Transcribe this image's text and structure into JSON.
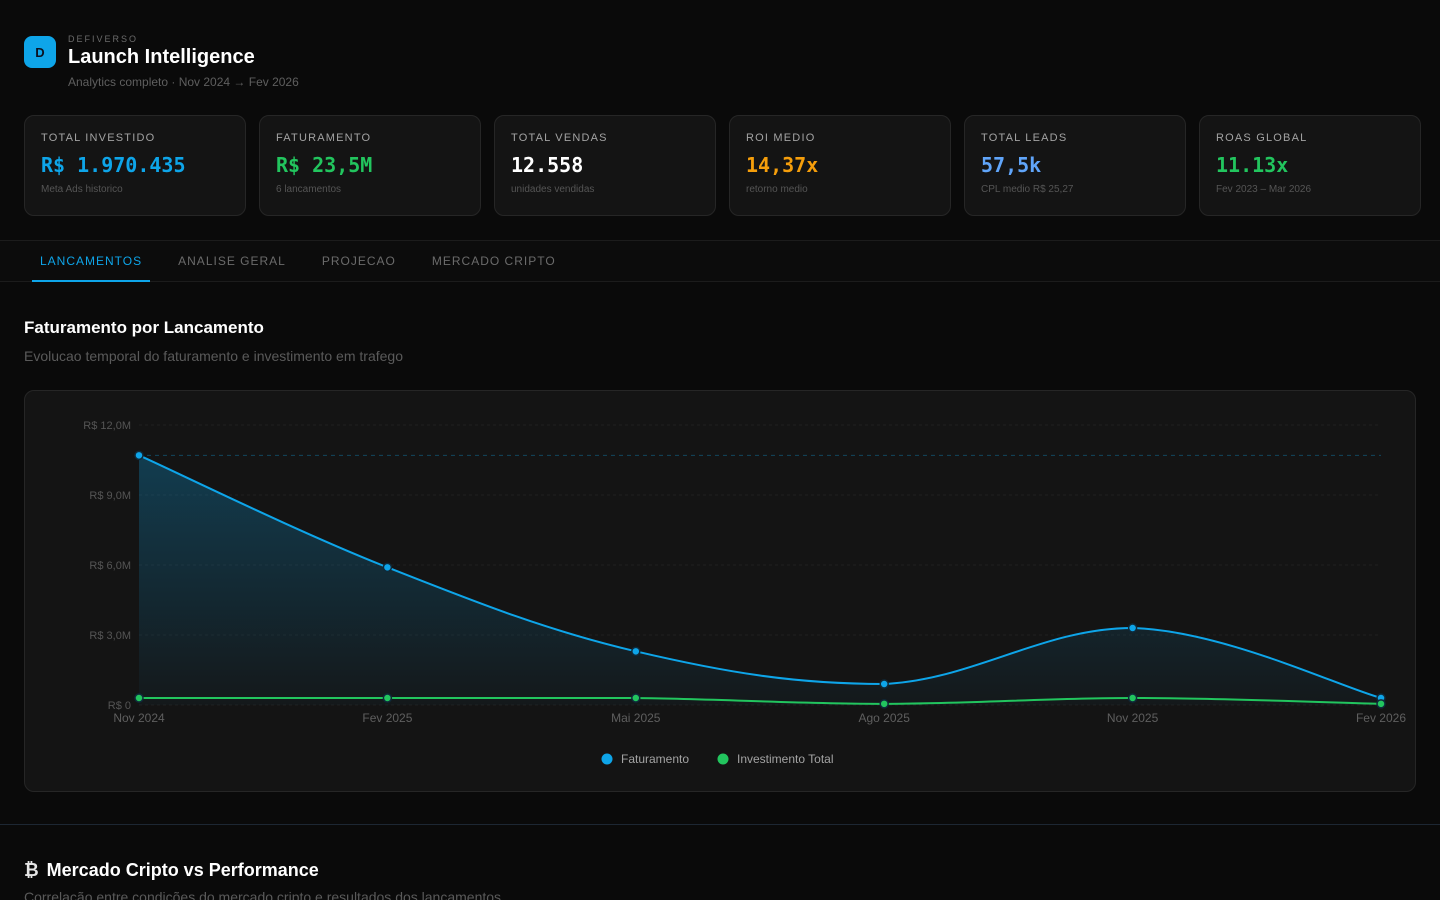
{
  "header": {
    "logo_letter": "D",
    "brand": "DEFIVERSO",
    "title": "Launch Intelligence",
    "subtitle": "Analytics completo · Nov 2024 → Fev 2026"
  },
  "kpis": [
    {
      "label": "TOTAL INVESTIDO",
      "value": "R$ 1.970.435",
      "sub": "Meta Ads historico",
      "color": "#0ea5e9"
    },
    {
      "label": "FATURAMENTO",
      "value": "R$ 23,5M",
      "sub": "6 lancamentos",
      "color": "#22c55e"
    },
    {
      "label": "TOTAL VENDAS",
      "value": "12.558",
      "sub": "unidades vendidas",
      "color": "#ffffff"
    },
    {
      "label": "ROI MEDIO",
      "value": "14,37x",
      "sub": "retorno medio",
      "color": "#f59e0b"
    },
    {
      "label": "TOTAL LEADS",
      "value": "57,5k",
      "sub": "CPL medio R$ 25,27",
      "color": "#60a5fa"
    },
    {
      "label": "ROAS GLOBAL",
      "value": "11.13x",
      "sub": "Fev 2023 – Mar 2026",
      "color": "#22c55e"
    }
  ],
  "tabs": [
    {
      "label": "LANCAMENTOS",
      "active": true
    },
    {
      "label": "ANALISE GERAL",
      "active": false
    },
    {
      "label": "PROJECAO",
      "active": false
    },
    {
      "label": "MERCADO CRIPTO",
      "active": false
    }
  ],
  "section": {
    "title": "Faturamento por Lancamento",
    "subtitle": "Evolucao temporal do faturamento e investimento em trafego"
  },
  "chart_data": {
    "type": "line",
    "x": [
      "Nov 2024",
      "Fev 2025",
      "Mai 2025",
      "Ago 2025",
      "Nov 2025",
      "Fev 2026"
    ],
    "y_ticks": [
      "R$ 0",
      "R$ 3,0M",
      "R$ 6,0M",
      "R$ 9,0M",
      "R$ 12,0M"
    ],
    "ylim": [
      0,
      12
    ],
    "reference_line": 10.7,
    "series": [
      {
        "name": "Faturamento",
        "color": "#0ea5e9",
        "values": [
          10.7,
          5.9,
          2.3,
          0.9,
          3.3,
          0.3
        ],
        "area": true
      },
      {
        "name": "Investimento Total",
        "color": "#22c55e",
        "values": [
          0.3,
          0.3,
          0.3,
          0.05,
          0.3,
          0.05
        ],
        "area": false
      }
    ],
    "legend": "bottom-center",
    "grid": true
  },
  "section2": {
    "icon": "bitcoin-icon",
    "icon_glyph": "₿",
    "title": "Mercado Cripto vs Performance",
    "subtitle": "Correlação entre condições do mercado cripto e resultados dos lancamentos"
  }
}
